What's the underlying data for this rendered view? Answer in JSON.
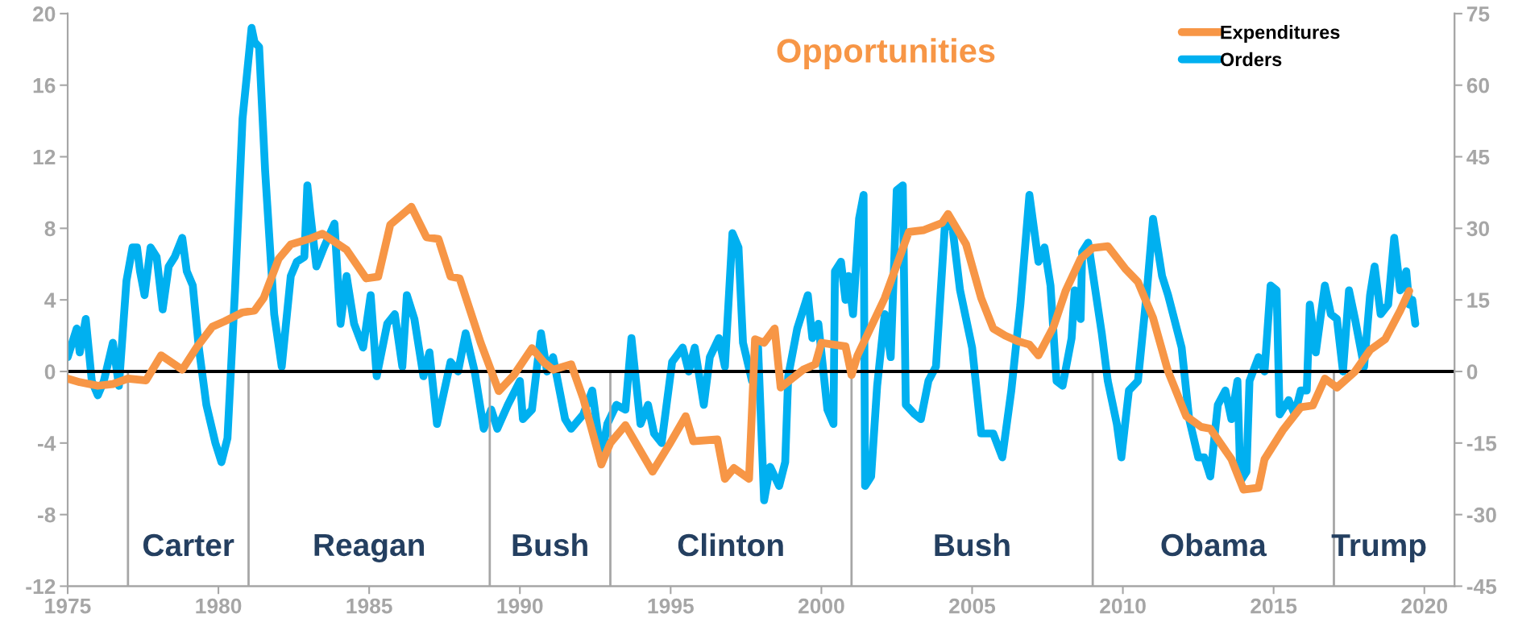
{
  "chart_data": {
    "type": "line",
    "title": "Opportunities",
    "xlim": [
      1975,
      2021
    ],
    "xticks": [
      1975,
      1980,
      1985,
      1990,
      1995,
      2000,
      2005,
      2010,
      2015,
      2020
    ],
    "ylim": [
      -12,
      20
    ],
    "yticks": [
      -12,
      -8,
      -4,
      0,
      4,
      8,
      12,
      16,
      20
    ],
    "y2lim": [
      -45,
      75
    ],
    "y2ticks": [
      -45,
      -30,
      -15,
      0,
      15,
      30,
      45,
      60,
      75
    ],
    "legend": "top right",
    "grid": false,
    "series": [
      {
        "name": "Expenditures",
        "color": "#f79646",
        "x": [
          1975.0,
          1975.4,
          1976.0,
          1976.5,
          1977.0,
          1977.6,
          1978.1,
          1978.8,
          1979.3,
          1979.8,
          1980.2,
          1980.8,
          1981.2,
          1981.5,
          1982.0,
          1982.4,
          1983.0,
          1983.45,
          1984.25,
          1984.9,
          1985.3,
          1985.7,
          1986.4,
          1986.9,
          1987.3,
          1987.7,
          1988.0,
          1988.7,
          1989.3,
          1989.8,
          1990.4,
          1990.8,
          1991.1,
          1991.7,
          1992.1,
          1992.7,
          1993.0,
          1993.5,
          1994.4,
          1994.95,
          1995.5,
          1995.75,
          1996.55,
          1996.8,
          1997.1,
          1997.6,
          1997.8,
          1998.1,
          1998.45,
          1998.65,
          1999.4,
          1999.8,
          2000.0,
          2000.8,
          2001.0,
          2001.2,
          2002.1,
          2002.9,
          2003.4,
          2004.0,
          2004.2,
          2004.8,
          2005.3,
          2005.7,
          2006.1,
          2006.5,
          2006.9,
          2007.2,
          2007.7,
          2008.1,
          2008.6,
          2009.0,
          2009.5,
          2010.1,
          2010.5,
          2011.0,
          2011.5,
          2012.1,
          2012.6,
          2012.9,
          2013.6,
          2014.0,
          2014.5,
          2014.7,
          2015.3,
          2015.9,
          2016.3,
          2016.7,
          2017.1,
          2017.7,
          2018.2,
          2018.7,
          2019.2,
          2019.5
        ],
        "values": [
          -0.4,
          -0.6,
          -0.8,
          -0.7,
          -0.4,
          -0.5,
          0.9,
          0.1,
          1.4,
          2.5,
          2.8,
          3.3,
          3.4,
          4.1,
          6.3,
          7.1,
          7.4,
          7.7,
          6.8,
          5.2,
          5.3,
          8.2,
          9.2,
          7.5,
          7.4,
          5.3,
          5.2,
          1.6,
          -1.1,
          -0.2,
          1.3,
          0.5,
          0.1,
          0.4,
          -1.5,
          -5.2,
          -4.0,
          -3.0,
          -5.6,
          -4.1,
          -2.5,
          -3.9,
          -3.8,
          -6.0,
          -5.4,
          -6.0,
          1.8,
          1.6,
          2.4,
          -0.9,
          0.1,
          0.4,
          1.6,
          1.4,
          -0.2,
          0.9,
          4.1,
          7.8,
          7.9,
          8.3,
          8.8,
          7.1,
          4.1,
          2.4,
          2.0,
          1.7,
          1.5,
          0.9,
          2.5,
          4.5,
          6.3,
          6.9,
          7.0,
          5.7,
          5.0,
          3.0,
          0.0,
          -2.5,
          -3.1,
          -3.2,
          -4.9,
          -6.6,
          -6.5,
          -4.9,
          -3.3,
          -2.0,
          -1.9,
          -0.4,
          -0.9,
          0.0,
          1.2,
          1.8,
          3.4,
          4.5
        ]
      },
      {
        "name": "Orders",
        "color": "#00b0f0",
        "axis": "y2",
        "x": [
          1975.0,
          1975.3,
          1975.4,
          1975.6,
          1975.8,
          1976.0,
          1976.2,
          1976.5,
          1976.7,
          1976.95,
          1977.15,
          1977.3,
          1977.4,
          1977.55,
          1977.75,
          1977.95,
          1978.15,
          1978.35,
          1978.55,
          1978.8,
          1978.95,
          1979.15,
          1979.35,
          1979.6,
          1979.9,
          1980.1,
          1980.3,
          1980.55,
          1980.8,
          1981.1,
          1981.2,
          1981.35,
          1981.55,
          1981.85,
          1982.1,
          1982.4,
          1982.6,
          1982.85,
          1982.95,
          1983.05,
          1983.25,
          1983.5,
          1983.85,
          1984.05,
          1984.25,
          1984.5,
          1984.8,
          1985.05,
          1985.25,
          1985.6,
          1985.85,
          1986.1,
          1986.25,
          1986.5,
          1986.8,
          1987.0,
          1987.25,
          1987.7,
          1987.95,
          1988.2,
          1988.5,
          1988.8,
          1989.05,
          1989.25,
          1989.6,
          1990.0,
          1990.1,
          1990.4,
          1990.7,
          1990.9,
          1991.1,
          1991.5,
          1991.7,
          1992.1,
          1992.4,
          1992.7,
          1992.9,
          1993.2,
          1993.5,
          1993.7,
          1994.0,
          1994.25,
          1994.45,
          1994.7,
          1995.05,
          1995.4,
          1995.6,
          1995.8,
          1996.1,
          1996.3,
          1996.6,
          1996.8,
          1997.05,
          1997.25,
          1997.4,
          1997.7,
          1997.9,
          1998.1,
          1998.3,
          1998.6,
          1998.8,
          1998.9,
          1999.2,
          1999.55,
          1999.7,
          1999.9,
          2000.2,
          2000.4,
          2000.45,
          2000.65,
          2000.8,
          2000.9,
          2001.05,
          2001.25,
          2001.4,
          2001.45,
          2001.65,
          2001.85,
          2002.1,
          2002.3,
          2002.5,
          2002.7,
          2002.8,
          2003.1,
          2003.3,
          2003.55,
          2003.8,
          2004.1,
          2004.35,
          2004.6,
          2004.8,
          2005.0,
          2005.3,
          2005.7,
          2006.0,
          2006.3,
          2006.6,
          2006.9,
          2007.2,
          2007.4,
          2007.6,
          2007.8,
          2008.0,
          2008.3,
          2008.4,
          2008.6,
          2008.65,
          2008.85,
          2009.3,
          2009.5,
          2009.8,
          2009.95,
          2010.2,
          2010.5,
          2010.8,
          2011.0,
          2011.3,
          2011.5,
          2011.95,
          2012.2,
          2012.5,
          2012.7,
          2012.9,
          2013.15,
          2013.4,
          2013.6,
          2013.8,
          2013.9,
          2014.1,
          2014.2,
          2014.5,
          2014.7,
          2014.9,
          2015.1,
          2015.2,
          2015.5,
          2015.7,
          2015.9,
          2016.1,
          2016.2,
          2016.4,
          2016.7,
          2016.9,
          2017.1,
          2017.3,
          2017.5,
          2017.7,
          2018.0,
          2018.2,
          2018.35,
          2018.55,
          2018.8,
          2019.0,
          2019.2,
          2019.4,
          2019.5,
          2019.6,
          2019.7
        ],
        "values": [
          3,
          9,
          4,
          11,
          -2,
          -5,
          -2,
          6,
          -3,
          19,
          26,
          26,
          21,
          16,
          26,
          24,
          13,
          22,
          24,
          28,
          21,
          18,
          5,
          -7,
          -15,
          -19,
          -14,
          17,
          53,
          72,
          69,
          68,
          42,
          12,
          1,
          20,
          23,
          24,
          39,
          33,
          22,
          26,
          31,
          10,
          20,
          10,
          5,
          16,
          -1,
          10,
          12,
          1,
          16,
          11,
          -1,
          4,
          -11,
          2,
          0,
          8,
          0,
          -12,
          -8,
          -12,
          -7,
          -2,
          -10,
          -8,
          8,
          0,
          3,
          -10,
          -12,
          -9,
          -4,
          -18,
          -11,
          -7,
          -8,
          7,
          -11,
          -7,
          -13,
          -15,
          2,
          5,
          0,
          5,
          -7,
          3,
          7,
          1,
          29,
          26,
          6,
          -2,
          5,
          -27,
          -20,
          -24,
          -19,
          -1,
          9,
          16,
          7,
          10,
          -8,
          -11,
          21,
          23,
          15,
          20,
          12,
          32,
          37,
          -24,
          -22,
          -3,
          12,
          3,
          38,
          39,
          -7,
          -9,
          -10,
          -2,
          1,
          31,
          30,
          17,
          11,
          5,
          -13,
          -13,
          -18,
          -4,
          14,
          37,
          23,
          26,
          18,
          -2,
          -3,
          7,
          17,
          11,
          25,
          27,
          8,
          -2,
          -11,
          -18,
          -4,
          -2,
          17,
          32,
          20,
          16,
          5,
          -10,
          -18,
          -18,
          -22,
          -7,
          -4,
          -10,
          -2,
          -23,
          -21,
          -2,
          3,
          0,
          18,
          17,
          -9,
          -6,
          -9,
          -4,
          -4,
          14,
          4,
          18,
          12,
          11,
          0,
          17,
          11,
          1,
          16,
          22,
          12,
          14,
          28,
          17,
          21,
          14,
          15,
          10
        ]
      }
    ],
    "ref_lines": [
      {
        "axis": "y",
        "value": 0,
        "color": "#000000"
      },
      {
        "axis": "x",
        "value": 1977,
        "color": "#a6a6a6"
      },
      {
        "axis": "x",
        "value": 1981,
        "color": "#a6a6a6"
      },
      {
        "axis": "x",
        "value": 1989,
        "color": "#a6a6a6"
      },
      {
        "axis": "x",
        "value": 1993,
        "color": "#a6a6a6"
      },
      {
        "axis": "x",
        "value": 2001,
        "color": "#a6a6a6"
      },
      {
        "axis": "x",
        "value": 2009,
        "color": "#a6a6a6"
      },
      {
        "axis": "x",
        "value": 2017,
        "color": "#a6a6a6"
      }
    ],
    "annotations": [
      "Carter",
      "Reagan",
      "Bush",
      "Clinton",
      "Bush",
      "Obama",
      "Trump"
    ]
  }
}
